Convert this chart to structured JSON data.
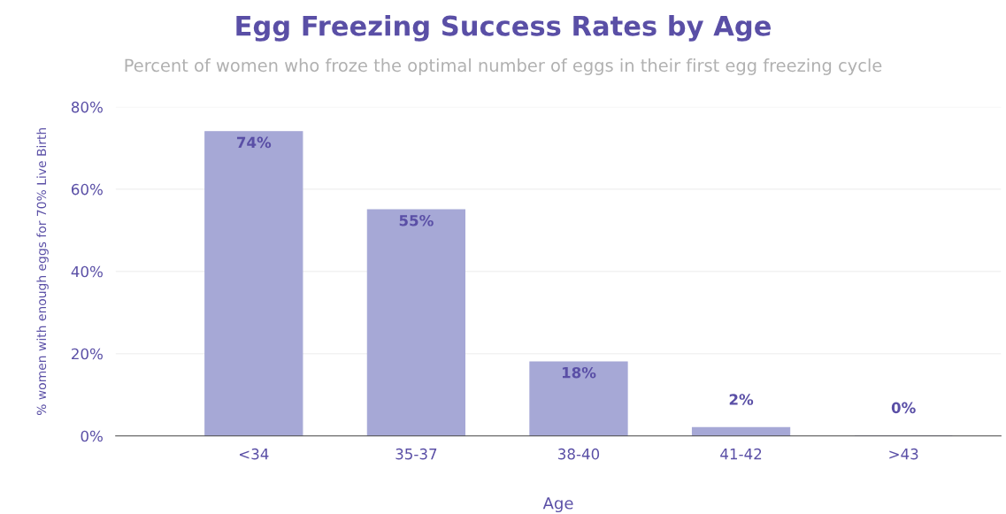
{
  "chart_data": {
    "type": "bar",
    "title": "Egg Freezing Success Rates by Age",
    "subtitle": "Percent of women who froze the optimal number of eggs in their first egg freezing cycle",
    "xlabel": "Age",
    "ylabel": "% women with enough eggs for 70% Live Birth",
    "categories": [
      "<34",
      "35-37",
      "38-40",
      "41-42",
      ">43"
    ],
    "values": [
      74,
      55,
      18,
      2,
      0
    ],
    "value_labels": [
      "74%",
      "55%",
      "18%",
      "2%",
      "0%"
    ],
    "color": "#a6a8d6",
    "ylim": [
      0,
      80
    ],
    "yticks": [
      {
        "value": 0,
        "label": "0%"
      },
      {
        "value": 20,
        "label": "20%"
      },
      {
        "value": 40,
        "label": "40%"
      },
      {
        "value": 60,
        "label": "60%"
      },
      {
        "value": 80,
        "label": "80%"
      }
    ],
    "grid": "y"
  }
}
